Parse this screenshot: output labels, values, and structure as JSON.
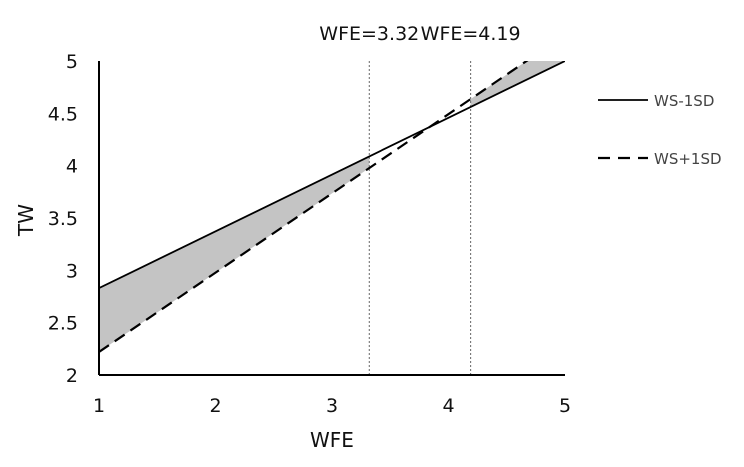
{
  "chart_data": {
    "type": "line",
    "xlabel": "WFE",
    "ylabel": "TW",
    "xlim": [
      1,
      5
    ],
    "ylim": [
      2,
      5
    ],
    "xticks": [
      "1",
      "2",
      "3",
      "4",
      "5"
    ],
    "yticks": [
      "2",
      "2.5",
      "3",
      "3.5",
      "4",
      "4.5",
      "5"
    ],
    "series": [
      {
        "name": "WS-1SD",
        "style": "solid",
        "x": [
          1,
          5
        ],
        "y": [
          2.83,
          5.0
        ]
      },
      {
        "name": "WS+1SD",
        "style": "dashed",
        "x": [
          1,
          5
        ],
        "y": [
          2.22,
          5.25
        ]
      }
    ],
    "reference_lines": [
      {
        "x": 3.32,
        "label": "WFE=3.32"
      },
      {
        "x": 4.19,
        "label": "WFE=4.19"
      }
    ],
    "shading": "gray fill between the two lines outside the WFE=3.32 to WFE=4.19 interval",
    "legend_position": "right",
    "grid": false,
    "colors": {
      "line": "#000000",
      "shade": "#c4c4c4",
      "refline": "#666666"
    }
  }
}
